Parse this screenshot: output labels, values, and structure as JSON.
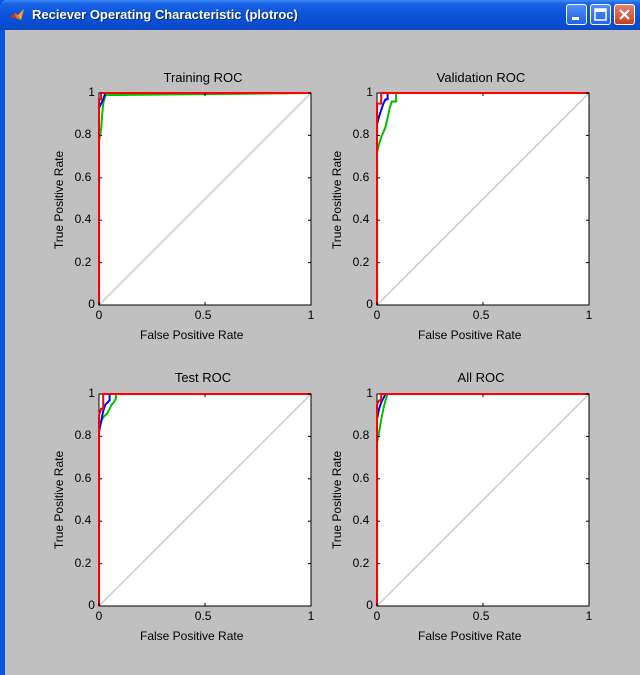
{
  "window": {
    "title": "Reciever Operating Characteristic (plotroc)"
  },
  "colors": {
    "class1": "#ff0000",
    "class2": "#0000ff",
    "class3": "#00c000",
    "diagonal": "#c8c8c8",
    "titlebar": "#0a52d8"
  },
  "chart_data": [
    {
      "type": "line",
      "title": "Training ROC",
      "xlabel": "False Positive Rate",
      "ylabel": "True Positive Rate",
      "xlim": [
        0,
        1
      ],
      "ylim": [
        0,
        1
      ],
      "xticks": [
        "0",
        "0.5",
        "1"
      ],
      "yticks": [
        "0",
        "0.2",
        "0.4",
        "0.6",
        "0.8",
        "1"
      ],
      "series": [
        {
          "color": "#ff0000",
          "x": [
            0,
            0,
            0.01,
            0.01,
            1
          ],
          "y": [
            0,
            0.97,
            0.97,
            1,
            1
          ]
        },
        {
          "color": "#0000ff",
          "x": [
            0,
            0,
            0.01,
            0.02,
            0.03,
            1
          ],
          "y": [
            0,
            0.93,
            0.95,
            0.97,
            1,
            1
          ]
        },
        {
          "color": "#00c000",
          "x": [
            0,
            0,
            0.01,
            0.015,
            0.02,
            0.03,
            1
          ],
          "y": [
            0,
            0.77,
            0.83,
            0.9,
            0.95,
            0.99,
            1
          ]
        },
        {
          "color": "#c8c8c8",
          "x": [
            0,
            1
          ],
          "y": [
            0,
            1
          ]
        }
      ]
    },
    {
      "type": "line",
      "title": "Validation ROC",
      "xlabel": "False Positive Rate",
      "ylabel": "True Positive Rate",
      "xlim": [
        0,
        1
      ],
      "ylim": [
        0,
        1
      ],
      "xticks": [
        "0",
        "0.5",
        "1"
      ],
      "yticks": [
        "0",
        "0.2",
        "0.4",
        "0.6",
        "0.8",
        "1"
      ],
      "series": [
        {
          "color": "#ff0000",
          "x": [
            0,
            0,
            0.02,
            0.02,
            1
          ],
          "y": [
            0,
            0.95,
            0.95,
            1,
            1
          ]
        },
        {
          "color": "#0000ff",
          "x": [
            0,
            0,
            0.01,
            0.02,
            0.03,
            0.04,
            0.05,
            0.05,
            1
          ],
          "y": [
            0,
            0.85,
            0.89,
            0.92,
            0.95,
            0.97,
            0.97,
            1,
            1
          ]
        },
        {
          "color": "#00c000",
          "x": [
            0,
            0,
            0.01,
            0.02,
            0.04,
            0.05,
            0.06,
            0.07,
            0.09,
            0.09,
            1
          ],
          "y": [
            0,
            0.72,
            0.76,
            0.79,
            0.84,
            0.88,
            0.93,
            0.96,
            0.96,
            1,
            1
          ]
        },
        {
          "color": "#c8c8c8",
          "x": [
            0,
            1
          ],
          "y": [
            0,
            1
          ]
        }
      ]
    },
    {
      "type": "line",
      "title": "Test ROC",
      "xlabel": "False Positive Rate",
      "ylabel": "True Positive Rate",
      "xlim": [
        0,
        1
      ],
      "ylim": [
        0,
        1
      ],
      "xticks": [
        "0",
        "0.5",
        "1"
      ],
      "yticks": [
        "0",
        "0.2",
        "0.4",
        "0.6",
        "0.8",
        "1"
      ],
      "series": [
        {
          "color": "#ff0000",
          "x": [
            0,
            0,
            0.01,
            0.02,
            0.02,
            1
          ],
          "y": [
            0,
            0.9,
            0.93,
            0.93,
            1,
            1
          ]
        },
        {
          "color": "#0000ff",
          "x": [
            0,
            0,
            0.01,
            0.02,
            0.03,
            0.04,
            0.05,
            0.05,
            1
          ],
          "y": [
            0,
            0.82,
            0.87,
            0.92,
            0.95,
            0.96,
            0.97,
            1,
            1
          ]
        },
        {
          "color": "#00c000",
          "x": [
            0,
            0,
            0.02,
            0.04,
            0.06,
            0.07,
            0.08,
            0.08,
            1
          ],
          "y": [
            0,
            0.85,
            0.89,
            0.91,
            0.95,
            0.96,
            0.98,
            1,
            1
          ]
        },
        {
          "color": "#c8c8c8",
          "x": [
            0,
            1
          ],
          "y": [
            0,
            1
          ]
        }
      ]
    },
    {
      "type": "line",
      "title": "All ROC",
      "xlabel": "False Positive Rate",
      "ylabel": "True Positive Rate",
      "xlim": [
        0,
        1
      ],
      "ylim": [
        0,
        1
      ],
      "xticks": [
        "0",
        "0.5",
        "1"
      ],
      "yticks": [
        "0",
        "0.2",
        "0.4",
        "0.6",
        "0.8",
        "1"
      ],
      "series": [
        {
          "color": "#ff0000",
          "x": [
            0,
            0,
            0.01,
            0.02,
            0.02,
            1
          ],
          "y": [
            0,
            0.95,
            0.97,
            0.97,
            1,
            1
          ]
        },
        {
          "color": "#0000ff",
          "x": [
            0,
            0,
            0.01,
            0.02,
            0.03,
            0.04,
            1
          ],
          "y": [
            0,
            0.88,
            0.93,
            0.96,
            0.98,
            1,
            1
          ]
        },
        {
          "color": "#00c000",
          "x": [
            0,
            0,
            0.01,
            0.02,
            0.03,
            0.04,
            0.05,
            1
          ],
          "y": [
            0,
            0.77,
            0.82,
            0.88,
            0.93,
            0.97,
            1,
            1
          ]
        },
        {
          "color": "#c8c8c8",
          "x": [
            0,
            1
          ],
          "y": [
            0,
            1
          ]
        }
      ]
    }
  ]
}
